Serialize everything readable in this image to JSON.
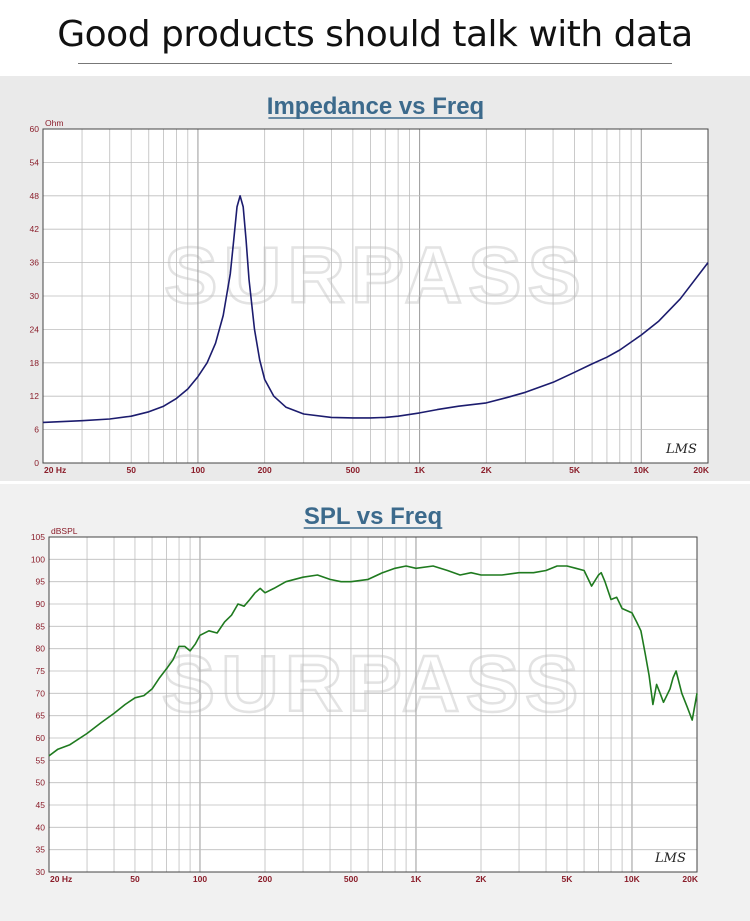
{
  "header": {
    "title": "Good products should talk with data"
  },
  "watermark": "SURPASS",
  "signature": "LMS",
  "colors": {
    "impedance_line": "#1c1c6e",
    "spl_line": "#1f7a1f",
    "title": "#3c6a8c",
    "ticks": "#8a1d2a"
  },
  "chart_data": [
    {
      "type": "line",
      "title": "Impedance vs Freq",
      "ylabel": "Ohm",
      "xscale": "log",
      "xlim": [
        20,
        20000
      ],
      "ylim": [
        0,
        60
      ],
      "grid": true,
      "yticks": [
        "60",
        "54",
        "48",
        "42",
        "36",
        "30",
        "24",
        "18",
        "12",
        "6",
        "0"
      ],
      "xtick_labels": [
        {
          "f": 20,
          "label": "20  Hz"
        },
        {
          "f": 50,
          "label": "50"
        },
        {
          "f": 100,
          "label": "100"
        },
        {
          "f": 200,
          "label": "200"
        },
        {
          "f": 500,
          "label": "500"
        },
        {
          "f": 1000,
          "label": "1K"
        },
        {
          "f": 2000,
          "label": "2K"
        },
        {
          "f": 5000,
          "label": "5K"
        },
        {
          "f": 10000,
          "label": "10K"
        },
        {
          "f": 20000,
          "label": "20K"
        }
      ],
      "series": [
        {
          "x": [
            20,
            30,
            40,
            50,
            60,
            70,
            80,
            90,
            100,
            110,
            120,
            130,
            140,
            145,
            150,
            155,
            160,
            165,
            170,
            180,
            190,
            200,
            220,
            250,
            300,
            400,
            500,
            600,
            700,
            800,
            1000,
            1200,
            1500,
            2000,
            2500,
            3000,
            4000,
            5000,
            6000,
            7000,
            8000,
            10000,
            12000,
            15000,
            20000
          ],
          "y": [
            7.3,
            7.6,
            7.9,
            8.4,
            9.2,
            10.2,
            11.6,
            13.3,
            15.5,
            18,
            21.5,
            26.5,
            34,
            40,
            46,
            48,
            46,
            40,
            33,
            24,
            18.5,
            15,
            12,
            10,
            8.8,
            8.2,
            8.1,
            8.1,
            8.2,
            8.4,
            9,
            9.6,
            10.2,
            10.8,
            11.8,
            12.7,
            14.5,
            16.3,
            17.8,
            19,
            20.3,
            23,
            25.5,
            29.5,
            36
          ]
        }
      ]
    },
    {
      "type": "line",
      "title": "SPL vs Freq",
      "ylabel": "dBSPL",
      "xscale": "log",
      "xlim": [
        20,
        20000
      ],
      "ylim": [
        30,
        105
      ],
      "grid": true,
      "yticks": [
        "105",
        "100",
        "95",
        "90",
        "85",
        "80",
        "75",
        "70",
        "65",
        "60",
        "55",
        "50",
        "45",
        "40",
        "35",
        "30"
      ],
      "xtick_labels": [
        {
          "f": 20,
          "label": "20  Hz"
        },
        {
          "f": 50,
          "label": "50"
        },
        {
          "f": 100,
          "label": "100"
        },
        {
          "f": 200,
          "label": "200"
        },
        {
          "f": 500,
          "label": "500"
        },
        {
          "f": 1000,
          "label": "1K"
        },
        {
          "f": 2000,
          "label": "2K"
        },
        {
          "f": 5000,
          "label": "5K"
        },
        {
          "f": 10000,
          "label": "10K"
        },
        {
          "f": 20000,
          "label": "20K"
        }
      ],
      "series": [
        {
          "x": [
            20,
            22,
            25,
            30,
            35,
            40,
            45,
            50,
            55,
            60,
            65,
            70,
            75,
            80,
            85,
            90,
            95,
            100,
            110,
            120,
            130,
            140,
            150,
            160,
            170,
            180,
            190,
            200,
            220,
            250,
            300,
            350,
            400,
            450,
            500,
            600,
            700,
            800,
            900,
            1000,
            1200,
            1400,
            1600,
            1800,
            2000,
            2500,
            3000,
            3500,
            4000,
            4500,
            5000,
            5500,
            6000,
            6500,
            7000,
            7200,
            7500,
            8000,
            8500,
            9000,
            10000,
            10500,
            11000,
            11500,
            12000,
            12500,
            13000,
            13500,
            14000,
            15000,
            15500,
            16000,
            17000,
            18000,
            19000,
            20000
          ],
          "y": [
            56,
            57.5,
            58.5,
            61,
            63.5,
            65.5,
            67.5,
            69,
            69.5,
            71,
            73.5,
            75.5,
            77.5,
            80.5,
            80.5,
            79.5,
            81,
            83,
            84,
            83.5,
            86,
            87.5,
            90,
            89.5,
            91,
            92.5,
            93.5,
            92.5,
            93.5,
            95,
            96,
            96.5,
            95.5,
            95,
            95,
            95.5,
            97,
            98,
            98.5,
            98,
            98.5,
            97.5,
            96.5,
            97,
            96.5,
            96.5,
            97,
            97,
            97.5,
            98.5,
            98.5,
            98,
            97.5,
            94,
            96.5,
            97,
            95,
            91,
            91.5,
            89,
            88,
            86,
            84,
            79,
            74,
            67.5,
            72,
            70,
            68,
            71,
            73.5,
            75,
            70,
            67,
            64,
            70
          ]
        }
      ]
    }
  ]
}
